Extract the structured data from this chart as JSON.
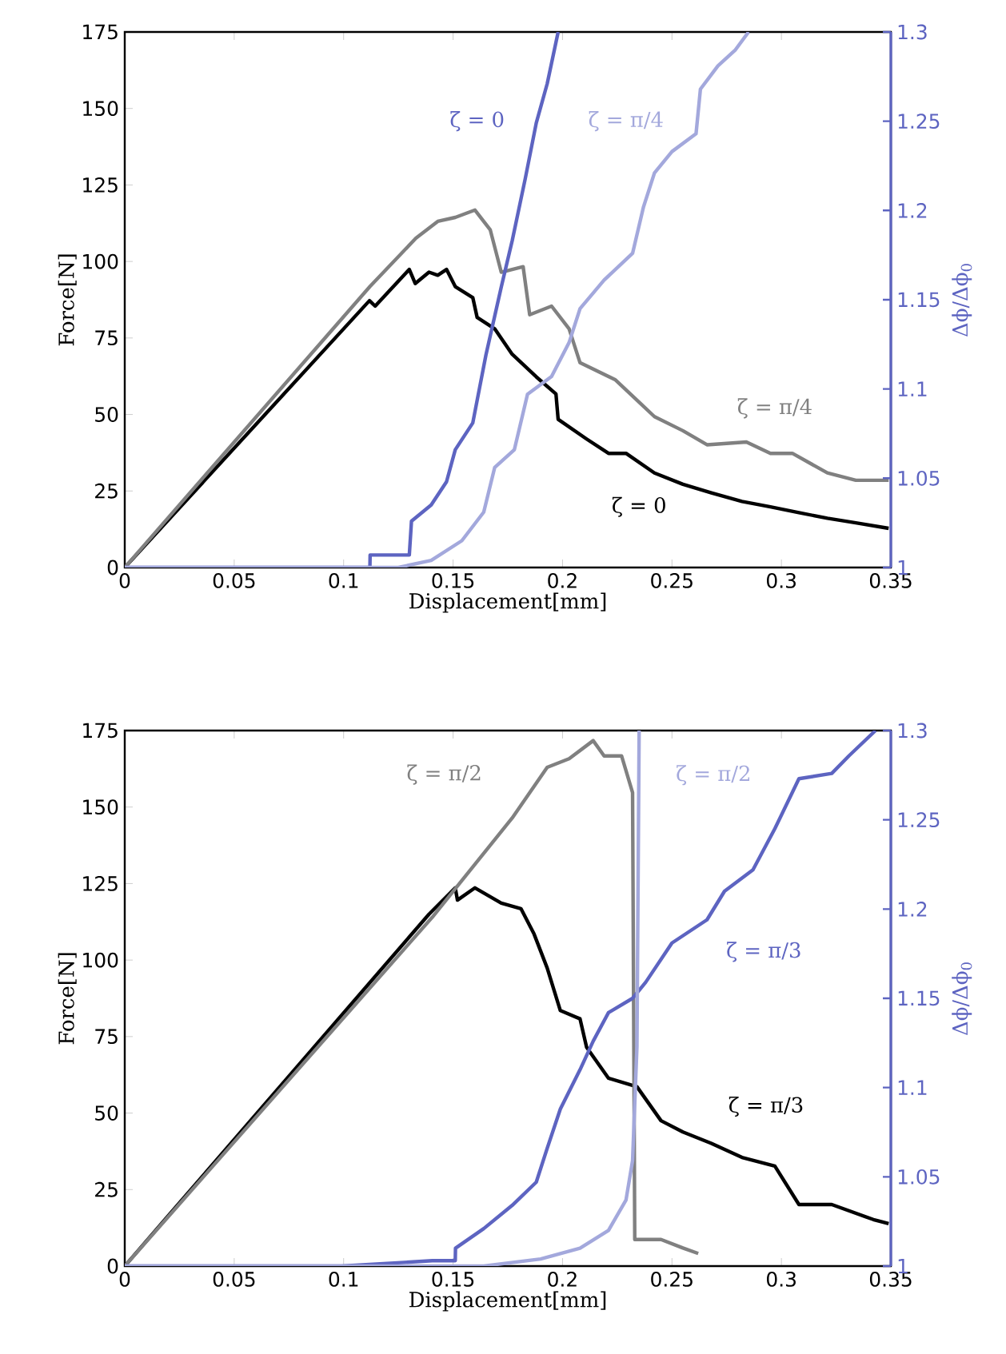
{
  "chart_data": [
    {
      "type": "line",
      "xlabel": "Displacement[mm]",
      "ylabel": "Force[N]",
      "y2label": "Δϕ/Δϕ$_{0}$",
      "xlim": [
        0,
        0.35
      ],
      "xticks": [
        0,
        0.05,
        0.1,
        0.15,
        0.2,
        0.25,
        0.3,
        0.35
      ],
      "ylim": [
        0,
        175
      ],
      "yticks": [
        0,
        25,
        50,
        75,
        100,
        125,
        150,
        175
      ],
      "y2lim": [
        1,
        1.3
      ],
      "y2ticks": [
        1,
        1.05,
        1.1,
        1.15,
        1.2,
        1.25,
        1.3
      ],
      "series": [
        {
          "name": "ζ = 0",
          "color": "#000000",
          "x": [
            0,
            0.1118,
            0.1144,
            0.13,
            0.1327,
            0.139,
            0.143,
            0.147,
            0.151,
            0.159,
            0.161,
            0.169,
            0.177,
            0.188,
            0.197,
            0.198,
            0.211,
            0.221,
            0.229,
            0.242,
            0.255,
            0.268,
            0.282,
            0.295,
            0.308,
            0.321,
            0.334,
            0.349
          ],
          "values": [
            0,
            87.2,
            85.4,
            97.4,
            92.8,
            96.5,
            95.5,
            97.4,
            91.8,
            88.2,
            81.7,
            78,
            69.7,
            62.3,
            56.7,
            48.4,
            42,
            37.3,
            37.3,
            30.9,
            27.2,
            24.4,
            21.6,
            19.8,
            17.9,
            16.1,
            14.6,
            12.8
          ]
        },
        {
          "name": "ζ = π/4",
          "color": "#808080",
          "x": [
            0,
            0.112,
            0.133,
            0.143,
            0.151,
            0.16,
            0.167,
            0.172,
            0.182,
            0.185,
            0.195,
            0.203,
            0.208,
            0.224,
            0.242,
            0.255,
            0.266,
            0.284,
            0.295,
            0.305,
            0.321,
            0.334,
            0.349
          ],
          "values": [
            0,
            91.8,
            107.6,
            113.1,
            114.4,
            116.8,
            110.3,
            96.5,
            98.3,
            82.6,
            85.4,
            78,
            66.9,
            61.4,
            49.3,
            44.7,
            40.1,
            41,
            37.3,
            37.3,
            30.9,
            28.5,
            28.5
          ]
        },
        {
          "name": "ζ = 0",
          "color": "#5d64c1",
          "axis": "y2",
          "x": [
            0,
            0.112,
            0.1121,
            0.13,
            0.131,
            0.14,
            0.147,
            0.151,
            0.159,
            0.165,
            0.172,
            0.177,
            0.183,
            0.188,
            0.193,
            0.198
          ],
          "values": [
            1,
            1,
            1.007,
            1.007,
            1.026,
            1.035,
            1.048,
            1.066,
            1.081,
            1.119,
            1.157,
            1.183,
            1.218,
            1.249,
            1.271,
            1.3
          ]
        },
        {
          "name": "ζ = π/4",
          "color": "#a3a8dc",
          "axis": "y2",
          "x": [
            0,
            0.125,
            0.14,
            0.154,
            0.164,
            0.169,
            0.178,
            0.184,
            0.195,
            0.203,
            0.208,
            0.219,
            0.232,
            0.237,
            0.242,
            0.25,
            0.261,
            0.263,
            0.271,
            0.279,
            0.285
          ],
          "values": [
            1,
            1,
            1.004,
            1.015,
            1.031,
            1.056,
            1.066,
            1.097,
            1.107,
            1.126,
            1.145,
            1.161,
            1.176,
            1.202,
            1.221,
            1.233,
            1.243,
            1.268,
            1.281,
            1.29,
            1.3
          ]
        }
      ]
    },
    {
      "type": "line",
      "xlabel": "Displacement[mm]",
      "ylabel": "Force[N]",
      "y2label": "Δϕ/Δϕ$_{0}$",
      "xlim": [
        0,
        0.35
      ],
      "xticks": [
        0,
        0.05,
        0.1,
        0.15,
        0.2,
        0.25,
        0.3,
        0.35
      ],
      "ylim": [
        0,
        175
      ],
      "yticks": [
        0,
        25,
        50,
        75,
        100,
        125,
        150,
        175
      ],
      "y2lim": [
        1,
        1.3
      ],
      "y2ticks": [
        1,
        1.05,
        1.1,
        1.15,
        1.2,
        1.25,
        1.3
      ],
      "series": [
        {
          "name": "ζ = π/3",
          "color": "#000000",
          "x": [
            0,
            0.139,
            0.151,
            0.152,
            0.16,
            0.172,
            0.181,
            0.187,
            0.193,
            0.199,
            0.208,
            0.211,
            0.221,
            0.234,
            0.245,
            0.255,
            0.268,
            0.282,
            0.297,
            0.308,
            0.323,
            0.342,
            0.349
          ],
          "values": [
            0,
            115,
            123.6,
            119.6,
            123.6,
            118.6,
            116.8,
            108.5,
            97.4,
            83.5,
            80.8,
            71.5,
            61.4,
            58.6,
            47.5,
            43.8,
            40.1,
            35.5,
            32.7,
            20.1,
            20.1,
            15.2,
            13.9
          ]
        },
        {
          "name": "ζ = π/2",
          "color": "#808080",
          "x": [
            0,
            0.1405,
            0.177,
            0.193,
            0.203,
            0.214,
            0.219,
            0.227,
            0.232,
            0.233,
            0.245,
            0.255,
            0.262
          ],
          "values": [
            0,
            114,
            146.4,
            163,
            165.8,
            171.7,
            166.7,
            166.7,
            154.7,
            8.7,
            8.7,
            5.9,
            4.1
          ]
        },
        {
          "name": "ζ = π/3",
          "color": "#5d64c1",
          "axis": "y2",
          "x": [
            0,
            0.099,
            0.1405,
            0.151,
            0.1511,
            0.164,
            0.177,
            0.188,
            0.193,
            0.199,
            0.208,
            0.214,
            0.221,
            0.232,
            0.238,
            0.25,
            0.266,
            0.274,
            0.287,
            0.297,
            0.308,
            0.323,
            0.331,
            0.343
          ],
          "values": [
            1,
            1,
            1.003,
            1.003,
            1.01,
            1.021,
            1.034,
            1.047,
            1.066,
            1.088,
            1.11,
            1.126,
            1.142,
            1.15,
            1.159,
            1.181,
            1.194,
            1.21,
            1.222,
            1.245,
            1.273,
            1.276,
            1.286,
            1.3
          ]
        },
        {
          "name": "ζ = π/2",
          "color": "#a3a8dc",
          "axis": "y2",
          "x": [
            0,
            0.164,
            0.19,
            0.208,
            0.221,
            0.229,
            0.232,
            0.234,
            0.235
          ],
          "values": [
            1,
            1,
            1.004,
            1.01,
            1.02,
            1.037,
            1.059,
            1.123,
            1.3
          ]
        }
      ]
    }
  ]
}
